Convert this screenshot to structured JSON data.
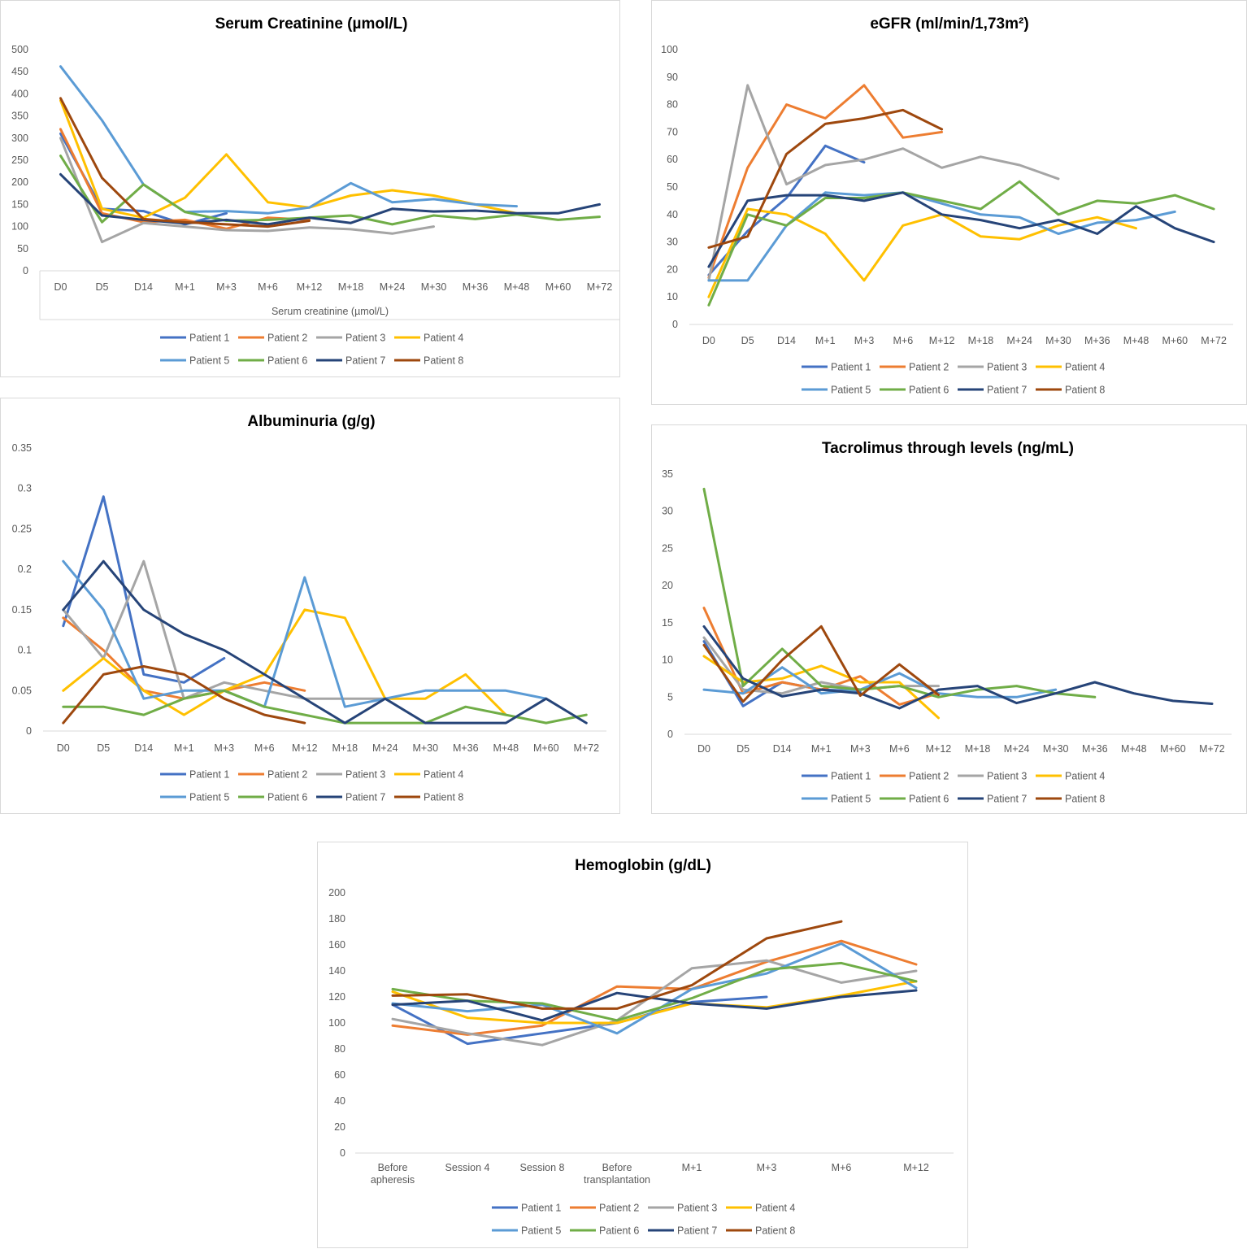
{
  "palette": [
    "#4472C4",
    "#ED7D31",
    "#A5A5A5",
    "#FFC000",
    "#5B9BD5",
    "#70AD47",
    "#264478",
    "#9E480E"
  ],
  "legend_labels": [
    "Patient 1",
    "Patient 2",
    "Patient 3",
    "Patient 4",
    "Patient 5",
    "Patient 6",
    "Patient 7",
    "Patient 8"
  ],
  "chart_data": [
    {
      "id": "creatinine",
      "type": "line",
      "title": "Serum Creatinine (µmol/L)",
      "xlabel": "Serum creatinine (µmol/L)",
      "ylabel": "",
      "categories": [
        "D0",
        "D5",
        "D14",
        "M+1",
        "M+3",
        "M+6",
        "M+12",
        "M+18",
        "M+24",
        "M+30",
        "M+36",
        "M+48",
        "M+60",
        "M+72"
      ],
      "yticks": [
        "0",
        "50",
        "100",
        "150",
        "200",
        "250",
        "300",
        "350",
        "400",
        "450",
        "500"
      ],
      "ylim": [
        0,
        500
      ],
      "series": [
        {
          "name": "Patient 1",
          "values": [
            310,
            140,
            135,
            105,
            130,
            null,
            null,
            null,
            null,
            null,
            null,
            null,
            null,
            null
          ]
        },
        {
          "name": "Patient 2",
          "values": [
            320,
            130,
            110,
            115,
            95,
            120,
            115,
            null,
            null,
            null,
            null,
            null,
            null,
            null
          ]
        },
        {
          "name": "Patient 3",
          "values": [
            300,
            65,
            108,
            100,
            92,
            90,
            98,
            94,
            84,
            100,
            null,
            null,
            null,
            null
          ]
        },
        {
          "name": "Patient 4",
          "values": [
            385,
            140,
            120,
            165,
            263,
            155,
            143,
            170,
            182,
            170,
            150,
            130,
            null,
            null
          ]
        },
        {
          "name": "Patient 5",
          "values": [
            462,
            340,
            195,
            133,
            135,
            130,
            143,
            198,
            155,
            162,
            150,
            146,
            null,
            null
          ]
        },
        {
          "name": "Patient 6",
          "values": [
            260,
            110,
            195,
            133,
            113,
            115,
            120,
            125,
            105,
            125,
            117,
            127,
            115,
            122
          ]
        },
        {
          "name": "Patient 7",
          "values": [
            218,
            125,
            115,
            107,
            115,
            105,
            120,
            108,
            140,
            134,
            136,
            130,
            130,
            150
          ]
        },
        {
          "name": "Patient 8",
          "values": [
            390,
            210,
            117,
            110,
            105,
            100,
            113,
            null,
            null,
            null,
            null,
            null,
            null,
            null
          ]
        }
      ]
    },
    {
      "id": "egfr",
      "type": "line",
      "title": "eGFR (ml/min/1,73m²)",
      "xlabel": "",
      "ylabel": "",
      "categories": [
        "D0",
        "D5",
        "D14",
        "M+1",
        "M+3",
        "M+6",
        "M+12",
        "M+18",
        "M+24",
        "M+30",
        "M+36",
        "M+48",
        "M+60",
        "M+72"
      ],
      "yticks": [
        "0",
        "10",
        "20",
        "30",
        "40",
        "50",
        "60",
        "70",
        "80",
        "90",
        "100"
      ],
      "ylim": [
        0,
        100
      ],
      "series": [
        {
          "name": "Patient 1",
          "values": [
            18,
            34,
            46,
            65,
            59,
            null,
            null,
            null,
            null,
            null,
            null,
            null,
            null,
            null
          ]
        },
        {
          "name": "Patient 2",
          "values": [
            17,
            57,
            80,
            75,
            87,
            68,
            70,
            null,
            null,
            null,
            null,
            null,
            null,
            null
          ]
        },
        {
          "name": "Patient 3",
          "values": [
            16,
            87,
            51,
            58,
            60,
            64,
            57,
            61,
            58,
            53,
            null,
            null,
            null,
            null
          ]
        },
        {
          "name": "Patient 4",
          "values": [
            10,
            42,
            40,
            33,
            16,
            36,
            40,
            32,
            31,
            36,
            39,
            35,
            null,
            null
          ]
        },
        {
          "name": "Patient 5",
          "values": [
            16,
            16,
            36,
            48,
            47,
            48,
            44,
            40,
            39,
            33,
            37,
            38,
            41,
            null
          ]
        },
        {
          "name": "Patient 6",
          "values": [
            7,
            40,
            36,
            46,
            46,
            48,
            45,
            42,
            52,
            40,
            45,
            44,
            47,
            42
          ]
        },
        {
          "name": "Patient 7",
          "values": [
            21,
            45,
            47,
            47,
            45,
            48,
            40,
            38,
            35,
            38,
            33,
            43,
            35,
            30
          ]
        },
        {
          "name": "Patient 8",
          "values": [
            28,
            32,
            62,
            73,
            75,
            78,
            71,
            null,
            null,
            null,
            null,
            null,
            null,
            null
          ]
        }
      ]
    },
    {
      "id": "albuminuria",
      "type": "line",
      "title": "Albuminuria (g/g)",
      "xlabel": "",
      "ylabel": "",
      "categories": [
        "D0",
        "D5",
        "D14",
        "M+1",
        "M+3",
        "M+6",
        "M+12",
        "M+18",
        "M+24",
        "M+30",
        "M+36",
        "M+48",
        "M+60",
        "M+72"
      ],
      "yticks": [
        "0",
        "0.05",
        "0.1",
        "0.15",
        "0.2",
        "0.25",
        "0.3",
        "0.35"
      ],
      "ylim": [
        0,
        0.35
      ],
      "series": [
        {
          "name": "Patient 1",
          "values": [
            0.13,
            0.29,
            0.07,
            0.06,
            0.09,
            null,
            null,
            null,
            null,
            null,
            null,
            null,
            null,
            null
          ]
        },
        {
          "name": "Patient 2",
          "values": [
            0.14,
            0.1,
            0.05,
            0.04,
            0.05,
            0.06,
            0.05,
            null,
            null,
            null,
            null,
            null,
            null,
            null
          ]
        },
        {
          "name": "Patient 3",
          "values": [
            0.15,
            0.09,
            0.21,
            0.04,
            0.06,
            0.05,
            0.04,
            0.04,
            0.04,
            null,
            null,
            null,
            null,
            null
          ]
        },
        {
          "name": "Patient 4",
          "values": [
            0.05,
            0.09,
            0.05,
            0.02,
            0.05,
            0.07,
            0.15,
            0.14,
            0.04,
            0.04,
            0.07,
            0.02,
            null,
            null
          ]
        },
        {
          "name": "Patient 5",
          "values": [
            0.21,
            0.15,
            0.04,
            0.05,
            0.05,
            0.03,
            0.19,
            0.03,
            0.04,
            0.05,
            0.05,
            0.05,
            0.04,
            null
          ]
        },
        {
          "name": "Patient 6",
          "values": [
            0.03,
            0.03,
            0.02,
            0.04,
            0.05,
            0.03,
            0.02,
            0.01,
            0.01,
            0.01,
            0.03,
            0.02,
            0.01,
            0.02
          ]
        },
        {
          "name": "Patient 7",
          "values": [
            0.15,
            0.21,
            0.15,
            0.12,
            0.1,
            0.07,
            0.04,
            0.01,
            0.04,
            0.01,
            0.01,
            0.01,
            0.04,
            0.01
          ]
        },
        {
          "name": "Patient 8",
          "values": [
            0.01,
            0.07,
            0.08,
            0.07,
            0.04,
            0.02,
            0.01,
            null,
            null,
            null,
            null,
            null,
            null,
            null
          ]
        }
      ]
    },
    {
      "id": "tacrolimus",
      "type": "line",
      "title": "Tacrolimus through levels (ng/mL)",
      "xlabel": "",
      "ylabel": "",
      "categories": [
        "D0",
        "D5",
        "D14",
        "M+1",
        "M+3",
        "M+6",
        "M+12",
        "M+18",
        "M+24",
        "M+30",
        "M+36",
        "M+48",
        "M+60",
        "M+72"
      ],
      "yticks": [
        "0",
        "5",
        "10",
        "15",
        "20",
        "25",
        "30",
        "35"
      ],
      "ylim": [
        0,
        35
      ],
      "series": [
        {
          "name": "Patient 1",
          "values": [
            12.5,
            3.8,
            7.0,
            6.0,
            5.8,
            null,
            null,
            null,
            null,
            null,
            null,
            null,
            null,
            null
          ]
        },
        {
          "name": "Patient 2",
          "values": [
            17.0,
            5.5,
            7.0,
            6.0,
            7.8,
            4.0,
            5.5,
            null,
            null,
            null,
            null,
            null,
            null,
            null
          ]
        },
        {
          "name": "Patient 3",
          "values": [
            13.0,
            6.0,
            5.5,
            7.0,
            6.0,
            6.5,
            6.5,
            null,
            null,
            null,
            null,
            null,
            null,
            null
          ]
        },
        {
          "name": "Patient 4",
          "values": [
            10.5,
            7.0,
            7.5,
            9.2,
            7.0,
            7.0,
            2.2,
            null,
            null,
            null,
            null,
            null,
            null,
            null
          ]
        },
        {
          "name": "Patient 5",
          "values": [
            6.0,
            5.5,
            9.0,
            5.5,
            6.0,
            8.2,
            5.5,
            5.0,
            5.0,
            6.0,
            null,
            null,
            null,
            null
          ]
        },
        {
          "name": "Patient 6",
          "values": [
            33.0,
            6.5,
            11.5,
            6.5,
            6.0,
            6.5,
            5.0,
            6.0,
            6.5,
            5.5,
            5.0,
            null,
            null,
            null
          ]
        },
        {
          "name": "Patient 7",
          "values": [
            14.5,
            7.5,
            5.1,
            6.0,
            5.5,
            3.5,
            6.0,
            6.5,
            4.2,
            5.5,
            7.0,
            5.5,
            4.5,
            4.1
          ]
        },
        {
          "name": "Patient 8",
          "values": [
            12.0,
            4.4,
            10.0,
            14.5,
            5.2,
            9.4,
            5.3,
            null,
            null,
            null,
            null,
            null,
            null,
            null
          ]
        }
      ]
    },
    {
      "id": "hemoglobin",
      "type": "line",
      "title": "Hemoglobin (g/dL)",
      "xlabel": "",
      "ylabel": "",
      "categories": [
        [
          "Before",
          "apheresis"
        ],
        [
          "Session 4"
        ],
        [
          "Session 8"
        ],
        [
          "Before",
          "transplantation"
        ],
        [
          "M+1"
        ],
        [
          "M+3"
        ],
        [
          "M+6"
        ],
        [
          "M+12"
        ]
      ],
      "yticks": [
        "0",
        "20",
        "40",
        "60",
        "80",
        "100",
        "120",
        "140",
        "160",
        "180",
        "200"
      ],
      "ylim": [
        0,
        200
      ],
      "series": [
        {
          "name": "Patient 1",
          "values": [
            114,
            84,
            92,
            100,
            116,
            120,
            null,
            null
          ]
        },
        {
          "name": "Patient 2",
          "values": [
            98,
            91,
            98,
            128,
            126,
            147,
            163,
            145
          ]
        },
        {
          "name": "Patient 3",
          "values": [
            103,
            92,
            83,
            102,
            142,
            148,
            131,
            140
          ]
        },
        {
          "name": "Patient 4",
          "values": [
            124,
            104,
            100,
            100,
            115,
            112,
            121,
            132
          ]
        },
        {
          "name": "Patient 5",
          "values": [
            115,
            109,
            114,
            92,
            126,
            138,
            161,
            127
          ]
        },
        {
          "name": "Patient 6",
          "values": [
            126,
            117,
            115,
            102,
            119,
            141,
            146,
            132
          ]
        },
        {
          "name": "Patient 7",
          "values": [
            114,
            117,
            102,
            123,
            115,
            111,
            120,
            125
          ]
        },
        {
          "name": "Patient 8",
          "values": [
            121,
            122,
            111,
            111,
            129,
            165,
            178,
            null
          ]
        }
      ]
    }
  ]
}
